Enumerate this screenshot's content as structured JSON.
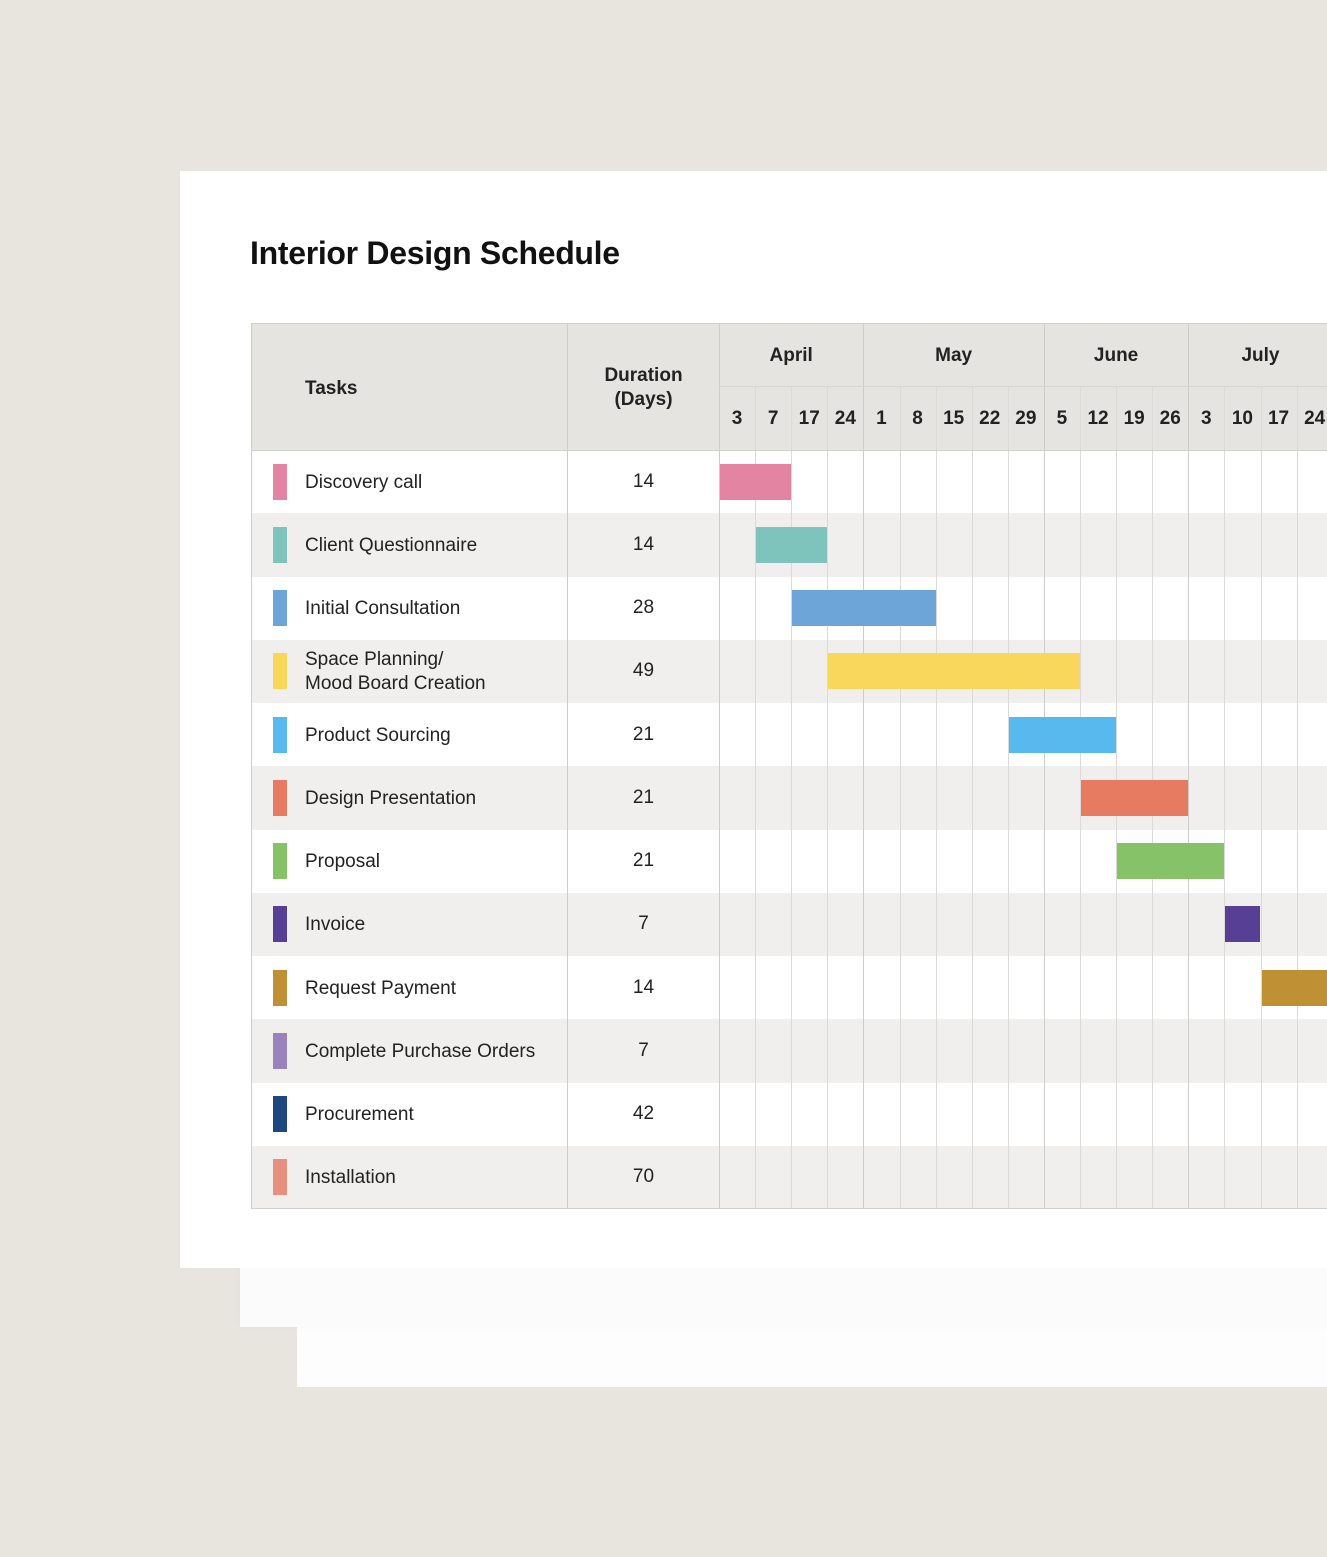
{
  "title": "Interior Design Schedule",
  "chart_data": {
    "type": "gantt",
    "title": "Interior Design Schedule",
    "columns": {
      "tasks": "Tasks",
      "duration": "Duration\n(Days)"
    },
    "months": [
      {
        "label": "April",
        "days": [
          "3",
          "7",
          "17",
          "24"
        ]
      },
      {
        "label": "May",
        "days": [
          "1",
          "8",
          "15",
          "22",
          "29"
        ]
      },
      {
        "label": "June",
        "days": [
          "5",
          "12",
          "19",
          "26"
        ]
      },
      {
        "label": "July",
        "days": [
          "3",
          "10",
          "17",
          "24"
        ]
      }
    ],
    "tasks": [
      {
        "name": "Discovery call",
        "duration": "14",
        "color": "#e384a2",
        "start_week": 0,
        "span_weeks": 2
      },
      {
        "name": "Client Questionnaire",
        "duration": "14",
        "color": "#7ec4bc",
        "start_week": 1,
        "span_weeks": 2
      },
      {
        "name": "Initial Consultation",
        "duration": "28",
        "color": "#6ea5d8",
        "start_week": 2,
        "span_weeks": 4
      },
      {
        "name": "Space Planning/\nMood Board Creation",
        "duration": "49",
        "color": "#f8d75a",
        "start_week": 3,
        "span_weeks": 7
      },
      {
        "name": "Product Sourcing",
        "duration": "21",
        "color": "#58b9ee",
        "start_week": 8,
        "span_weeks": 3
      },
      {
        "name": "Design Presentation",
        "duration": "21",
        "color": "#e67b62",
        "start_week": 10,
        "span_weeks": 3
      },
      {
        "name": "Proposal",
        "duration": "21",
        "color": "#86c267",
        "start_week": 11,
        "span_weeks": 3
      },
      {
        "name": "Invoice",
        "duration": "7",
        "color": "#573f95",
        "start_week": 14,
        "span_weeks": 1
      },
      {
        "name": "Request Payment",
        "duration": "14",
        "color": "#c09134",
        "start_week": 15,
        "span_weeks": 2
      },
      {
        "name": "Complete Purchase Orders",
        "duration": "7",
        "color": "#9a83bc",
        "start_week": null,
        "span_weeks": 1
      },
      {
        "name": "Procurement",
        "duration": "42",
        "color": "#1f477f",
        "start_week": null,
        "span_weeks": 6
      },
      {
        "name": "Installation",
        "duration": "70",
        "color": "#e89080",
        "start_week": null,
        "span_weeks": 10
      }
    ]
  }
}
